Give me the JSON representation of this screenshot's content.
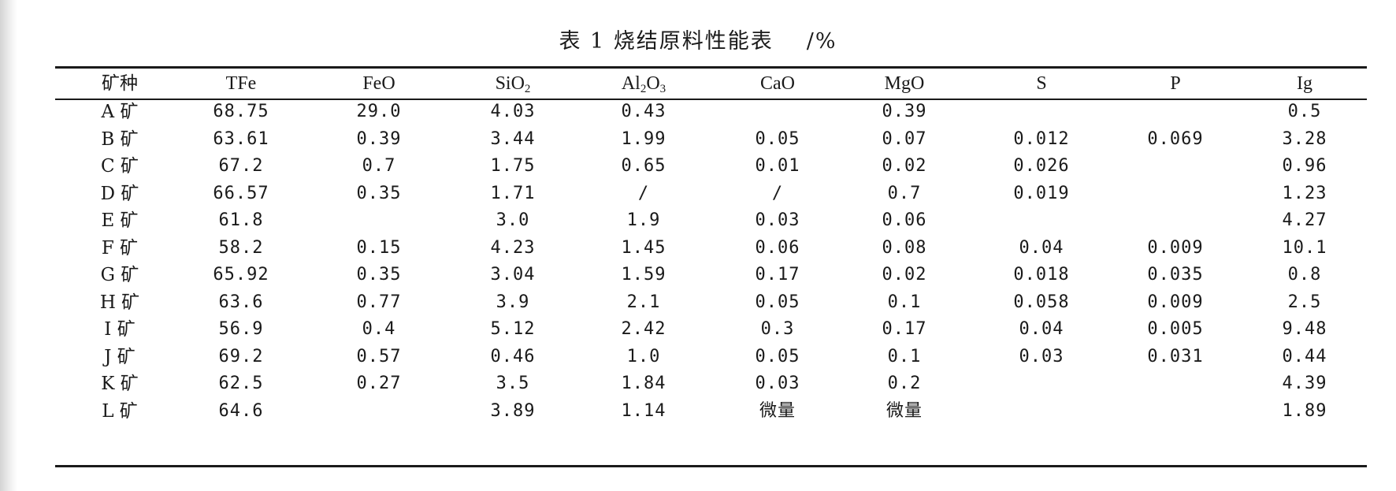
{
  "table": {
    "title": "表 1  烧结原料性能表",
    "unit": "/%",
    "headers": {
      "species": "矿种",
      "tfe": "TFe",
      "feo": "FeO",
      "sio2": "SiO",
      "sio2_sub": "2",
      "al2o3_a": "Al",
      "al2o3_sub1": "2",
      "al2o3_b": "O",
      "al2o3_sub2": "3",
      "cao": "CaO",
      "mgo": "MgO",
      "s": "S",
      "p": "P",
      "ig": "Ig"
    },
    "rows": [
      [
        "A 矿",
        "68.75",
        "29.0",
        "4.03",
        "0.43",
        "",
        "0.39",
        "",
        "",
        "0.5"
      ],
      [
        "B 矿",
        "63.61",
        "0.39",
        "3.44",
        "1.99",
        "0.05",
        "0.07",
        "0.012",
        "0.069",
        "3.28"
      ],
      [
        "C 矿",
        "67.2",
        "0.7",
        "1.75",
        "0.65",
        "0.01",
        "0.02",
        "0.026",
        "",
        "0.96"
      ],
      [
        "D 矿",
        "66.57",
        "0.35",
        "1.71",
        "/",
        "/",
        "0.7",
        "0.019",
        "",
        "1.23"
      ],
      [
        "E 矿",
        "61.8",
        "",
        "3.0",
        "1.9",
        "0.03",
        "0.06",
        "",
        "",
        "4.27"
      ],
      [
        "F 矿",
        "58.2",
        "0.15",
        "4.23",
        "1.45",
        "0.06",
        "0.08",
        "0.04",
        "0.009",
        "10.1"
      ],
      [
        "G 矿",
        "65.92",
        "0.35",
        "3.04",
        "1.59",
        "0.17",
        "0.02",
        "0.018",
        "0.035",
        "0.8"
      ],
      [
        "H 矿",
        "63.6",
        "0.77",
        "3.9",
        "2.1",
        "0.05",
        "0.1",
        "0.058",
        "0.009",
        "2.5"
      ],
      [
        "I 矿",
        "56.9",
        "0.4",
        "5.12",
        "2.42",
        "0.3",
        "0.17",
        "0.04",
        "0.005",
        "9.48"
      ],
      [
        "J 矿",
        "69.2",
        "0.57",
        "0.46",
        "1.0",
        "0.05",
        "0.1",
        "0.03",
        "0.031",
        "0.44"
      ],
      [
        "K 矿",
        "62.5",
        "0.27",
        "3.5",
        "1.84",
        "0.03",
        "0.2",
        "",
        "",
        "4.39"
      ],
      [
        "L 矿",
        "64.6",
        "",
        "3.89",
        "1.14",
        "微量",
        "微量",
        "",
        "",
        "1.89"
      ]
    ]
  }
}
